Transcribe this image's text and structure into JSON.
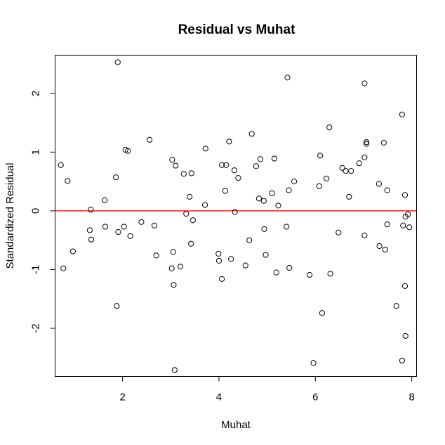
{
  "chart_data": {
    "type": "scatter",
    "title": "Residual vs Muhat",
    "xlabel": "Muhat",
    "ylabel": "Standardized Residual",
    "xlim": [
      0.6,
      8.1
    ],
    "ylim": [
      -2.82,
      2.65
    ],
    "xticks": [
      2,
      4,
      6,
      8
    ],
    "yticks": [
      -2,
      -1,
      0,
      1,
      2
    ],
    "reference_line": {
      "y": 0,
      "color": "#ff0000"
    },
    "grid": false,
    "legend": "none",
    "marker": "open-circle",
    "points": [
      [
        0.72,
        0.78
      ],
      [
        0.77,
        -0.98
      ],
      [
        0.86,
        0.51
      ],
      [
        0.97,
        -0.69
      ],
      [
        1.32,
        -0.33
      ],
      [
        1.34,
        0.02
      ],
      [
        1.35,
        -0.49
      ],
      [
        1.63,
        0.18
      ],
      [
        1.64,
        -0.27
      ],
      [
        1.86,
        0.57
      ],
      [
        1.88,
        -1.62
      ],
      [
        1.9,
        2.53
      ],
      [
        1.91,
        -0.36
      ],
      [
        2.03,
        -0.27
      ],
      [
        2.06,
        1.04
      ],
      [
        2.11,
        1.02
      ],
      [
        2.16,
        -0.43
      ],
      [
        2.39,
        -0.19
      ],
      [
        2.56,
        1.21
      ],
      [
        2.66,
        -0.25
      ],
      [
        2.7,
        -0.76
      ],
      [
        3.02,
        -0.98
      ],
      [
        3.03,
        0.87
      ],
      [
        3.05,
        -0.7
      ],
      [
        3.06,
        -1.26
      ],
      [
        3.08,
        -2.71
      ],
      [
        3.1,
        0.77
      ],
      [
        3.2,
        -0.95
      ],
      [
        3.27,
        0.63
      ],
      [
        3.32,
        -0.05
      ],
      [
        3.39,
        0.24
      ],
      [
        3.42,
        -0.56
      ],
      [
        3.43,
        0.64
      ],
      [
        3.46,
        -0.16
      ],
      [
        3.71,
        0.1
      ],
      [
        3.72,
        1.06
      ],
      [
        3.99,
        -0.73
      ],
      [
        4.0,
        -0.85
      ],
      [
        4.06,
        0.78
      ],
      [
        4.06,
        -1.16
      ],
      [
        4.13,
        0.34
      ],
      [
        4.15,
        0.78
      ],
      [
        4.21,
        1.18
      ],
      [
        4.25,
        -0.82
      ],
      [
        4.32,
        0.69
      ],
      [
        4.33,
        -0.02
      ],
      [
        4.4,
        0.56
      ],
      [
        4.55,
        -0.93
      ],
      [
        4.63,
        -0.5
      ],
      [
        4.68,
        1.31
      ],
      [
        4.77,
        0.76
      ],
      [
        4.83,
        0.21
      ],
      [
        4.86,
        0.88
      ],
      [
        4.93,
        0.17
      ],
      [
        4.94,
        -0.31
      ],
      [
        4.97,
        -0.75
      ],
      [
        5.1,
        0.3
      ],
      [
        5.15,
        0.89
      ],
      [
        5.19,
        -1.05
      ],
      [
        5.23,
        0.09
      ],
      [
        5.4,
        -0.27
      ],
      [
        5.42,
        2.27
      ],
      [
        5.45,
        0.35
      ],
      [
        5.46,
        -0.97
      ],
      [
        5.56,
        0.5
      ],
      [
        5.88,
        -1.09
      ],
      [
        5.96,
        -2.59
      ],
      [
        6.08,
        0.42
      ],
      [
        6.1,
        0.94
      ],
      [
        6.14,
        -1.74
      ],
      [
        6.23,
        0.55
      ],
      [
        6.29,
        1.42
      ],
      [
        6.31,
        -1.07
      ],
      [
        6.48,
        -0.37
      ],
      [
        6.56,
        0.73
      ],
      [
        6.63,
        0.68
      ],
      [
        6.7,
        0.24
      ],
      [
        6.74,
        0.68
      ],
      [
        6.91,
        0.81
      ],
      [
        7.02,
        2.17
      ],
      [
        7.02,
        -0.42
      ],
      [
        7.02,
        0.91
      ],
      [
        7.06,
        1.14
      ],
      [
        7.06,
        1.17
      ],
      [
        7.32,
        0.46
      ],
      [
        7.33,
        -0.6
      ],
      [
        7.42,
        1.16
      ],
      [
        7.45,
        -0.66
      ],
      [
        7.49,
        0.35
      ],
      [
        7.49,
        -0.23
      ],
      [
        7.68,
        -1.62
      ],
      [
        7.8,
        1.64
      ],
      [
        7.8,
        -2.55
      ],
      [
        7.82,
        -0.25
      ],
      [
        7.86,
        0.27
      ],
      [
        7.86,
        -1.28
      ],
      [
        7.87,
        -2.13
      ],
      [
        7.87,
        -0.1
      ],
      [
        7.92,
        -0.06
      ],
      [
        7.95,
        -0.28
      ]
    ]
  }
}
